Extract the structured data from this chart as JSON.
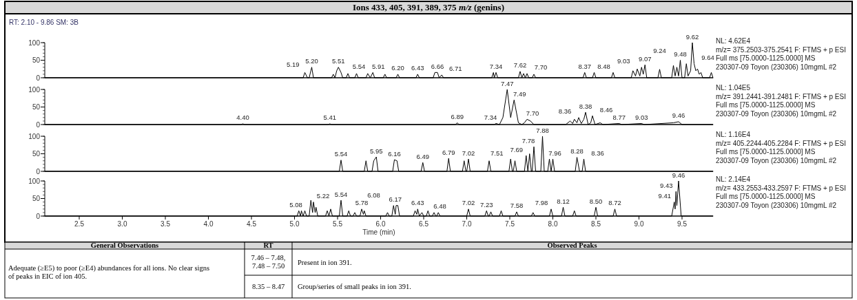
{
  "chart_data": [
    {
      "type": "line",
      "title": "Ions 433, 405, 391, 389, 375 m/z (genins)",
      "subtitle": "RT: 2.10 - 9.86  SM: 3B",
      "xlim": [
        2.1,
        9.86
      ],
      "xticks": [
        2.5,
        3.0,
        3.5,
        4.0,
        4.5,
        5.0,
        5.5,
        6.0,
        6.5,
        7.0,
        7.5,
        8.0,
        8.5,
        9.0,
        9.5
      ],
      "ylim": [
        0,
        100
      ],
      "yticks": [
        0,
        50,
        100
      ],
      "tick_labels": "y",
      "marker": "none",
      "series": [
        {
          "color": "#000000",
          "x": [
            2.1,
            5.1,
            5.12,
            5.15,
            5.17,
            5.19,
            5.2,
            5.22,
            5.43,
            5.45,
            5.47,
            5.49,
            5.51,
            5.54,
            5.56,
            5.6,
            5.62,
            5.64,
            5.7,
            5.72,
            5.74,
            5.83,
            5.85,
            5.88,
            5.91,
            5.93,
            6.03,
            6.05,
            6.07,
            6.18,
            6.2,
            6.22,
            6.41,
            6.43,
            6.45,
            6.61,
            6.63,
            6.66,
            6.68,
            6.71,
            6.73,
            7.29,
            7.31,
            7.32,
            7.34,
            7.36,
            7.6,
            7.62,
            7.64,
            7.66,
            7.68,
            7.7,
            7.72,
            7.76,
            7.78,
            7.8,
            8.35,
            8.37,
            8.39,
            8.46,
            8.48,
            8.5,
            8.68,
            8.7,
            8.72,
            8.91,
            8.93,
            8.96,
            8.98,
            9.01,
            9.03,
            9.05,
            9.07,
            9.09,
            9.22,
            9.24,
            9.26,
            9.38,
            9.4,
            9.42,
            9.44,
            9.46,
            9.48,
            9.5,
            9.53,
            9.55,
            9.57,
            9.6,
            9.62,
            9.64,
            9.66,
            9.68,
            9.7,
            9.72,
            9.74,
            9.82,
            9.84,
            9.86
          ],
          "values": [
            0,
            0,
            15,
            0,
            0,
            20,
            30,
            0,
            0,
            10,
            0,
            20,
            30,
            15,
            0,
            0,
            12,
            0,
            0,
            12,
            0,
            0,
            12,
            0,
            15,
            0,
            0,
            10,
            0,
            0,
            10,
            0,
            0,
            10,
            0,
            0,
            15,
            15,
            0,
            8,
            0,
            0,
            15,
            0,
            15,
            0,
            0,
            18,
            0,
            12,
            0,
            12,
            0,
            0,
            10,
            0,
            0,
            15,
            0,
            0,
            15,
            0,
            0,
            15,
            0,
            0,
            20,
            5,
            25,
            5,
            30,
            10,
            37,
            0,
            0,
            24,
            0,
            0,
            35,
            5,
            30,
            5,
            50,
            0,
            0,
            40,
            5,
            20,
            100,
            40,
            20,
            25,
            10,
            15,
            0,
            0,
            15,
            0
          ]
        }
      ],
      "annotations": [
        {
          "text": "5.19",
          "x": 5.19,
          "y": 20
        },
        {
          "text": "5.20",
          "x": 5.2,
          "y": 30
        },
        {
          "text": "5.51",
          "x": 5.51,
          "y": 30
        },
        {
          "text": "5.54",
          "x": 5.54,
          "y": 15
        },
        {
          "text": "5.91",
          "x": 5.91,
          "y": 15
        },
        {
          "text": "6.20",
          "x": 6.2,
          "y": 10
        },
        {
          "text": "6.43",
          "x": 6.43,
          "y": 10
        },
        {
          "text": "6.66",
          "x": 6.66,
          "y": 15
        },
        {
          "text": "6.71",
          "x": 6.71,
          "y": 8
        },
        {
          "text": "7.34",
          "x": 7.34,
          "y": 15
        },
        {
          "text": "7.62",
          "x": 7.62,
          "y": 18
        },
        {
          "text": "7.70",
          "x": 7.7,
          "y": 12
        },
        {
          "text": "8.37",
          "x": 8.37,
          "y": 15
        },
        {
          "text": "8.48",
          "x": 8.48,
          "y": 15
        },
        {
          "text": "9.03",
          "x": 9.03,
          "y": 30
        },
        {
          "text": "9.07",
          "x": 9.07,
          "y": 37
        },
        {
          "text": "9.24",
          "x": 9.24,
          "y": 24
        },
        {
          "text": "9.48",
          "x": 9.48,
          "y": 50
        },
        {
          "text": "9.62",
          "x": 9.62,
          "y": 100
        },
        {
          "text": "9.64",
          "x": 9.64,
          "y": 40
        },
        "NL: 4.62E4",
        "m/z= 375.2503-375.2541 F: FTMS + p ESI",
        "Full ms [75.0000-1125.0000]  MS",
        "230307-09 Toyon (230306) 10mgmL #2"
      ]
    },
    {
      "type": "line",
      "xlim": [
        2.1,
        9.86
      ],
      "xticks": [
        2.5,
        3.0,
        3.5,
        4.0,
        4.5,
        5.0,
        5.5,
        6.0,
        6.5,
        7.0,
        7.5,
        8.0,
        8.5,
        9.0,
        9.5
      ],
      "ylim": [
        0,
        100
      ],
      "yticks": [
        0,
        50,
        100
      ],
      "tick_labels": "y",
      "marker": "none",
      "series": [
        {
          "color": "#000000",
          "x": [
            2.1,
            4.38,
            4.4,
            4.42,
            5.39,
            5.41,
            5.43,
            6.87,
            6.89,
            6.91,
            7.32,
            7.34,
            7.38,
            7.42,
            7.47,
            7.51,
            7.55,
            7.6,
            7.64,
            7.67,
            7.7,
            7.74,
            7.78,
            8.15,
            8.2,
            8.23,
            8.25,
            8.28,
            8.3,
            8.33,
            8.36,
            8.38,
            8.41,
            8.44,
            8.46,
            8.49,
            8.55,
            8.58,
            8.77,
            8.8,
            9.03,
            9.06,
            9.4,
            9.46,
            9.5,
            9.86
          ],
          "values": [
            0,
            0,
            2,
            0,
            0,
            2,
            0,
            0,
            5,
            0,
            0,
            3,
            0,
            20,
            100,
            20,
            70,
            5,
            0,
            5,
            15,
            10,
            0,
            0,
            10,
            3,
            15,
            5,
            20,
            3,
            15,
            35,
            0,
            5,
            25,
            0,
            5,
            0,
            3,
            0,
            3,
            0,
            5,
            8,
            0,
            0
          ]
        }
      ],
      "annotations": [
        {
          "text": "4.40",
          "x": 4.4,
          "y": 2
        },
        {
          "text": "5.41",
          "x": 5.41,
          "y": 2
        },
        {
          "text": "6.89",
          "x": 6.89,
          "y": 5
        },
        {
          "text": "7.34",
          "x": 7.34,
          "y": 3
        },
        {
          "text": "7.47",
          "x": 7.47,
          "y": 100
        },
        {
          "text": "7.49",
          "x": 7.55,
          "y": 70
        },
        {
          "text": "7.70",
          "x": 7.7,
          "y": 15
        },
        {
          "text": "8.36",
          "x": 8.3,
          "y": 20
        },
        {
          "text": "8.38",
          "x": 8.38,
          "y": 35
        },
        {
          "text": "8.46",
          "x": 8.46,
          "y": 25
        },
        {
          "text": "8.77",
          "x": 8.77,
          "y": 3
        },
        {
          "text": "9.03",
          "x": 9.03,
          "y": 3
        },
        {
          "text": "9.46",
          "x": 9.46,
          "y": 8
        },
        "NL: 1.04E5",
        "m/z= 391.2441-391.2481 F: FTMS + p ESI",
        "Full ms [75.0000-1125.0000]  MS",
        "230307-09 Toyon (230306) 10mgmL #2"
      ]
    },
    {
      "type": "line",
      "xlim": [
        2.1,
        9.86
      ],
      "xticks": [
        2.5,
        3.0,
        3.5,
        4.0,
        4.5,
        5.0,
        5.5,
        6.0,
        6.5,
        7.0,
        7.5,
        8.0,
        8.5,
        9.0,
        9.5
      ],
      "ylim": [
        0,
        100
      ],
      "yticks": [
        0,
        50,
        100
      ],
      "tick_labels": "y",
      "marker": "none",
      "series": [
        {
          "color": "#000000",
          "x": [
            2.1,
            5.52,
            5.54,
            5.56,
            5.81,
            5.83,
            5.85,
            5.9,
            5.92,
            5.95,
            5.97,
            6.14,
            6.16,
            6.19,
            6.21,
            6.47,
            6.49,
            6.51,
            6.77,
            6.79,
            6.81,
            6.95,
            6.97,
            6.99,
            7.0,
            7.02,
            7.04,
            7.24,
            7.26,
            7.28,
            7.49,
            7.51,
            7.53,
            7.54,
            7.56,
            7.58,
            7.67,
            7.69,
            7.71,
            7.73,
            7.75,
            7.76,
            7.78,
            7.8,
            7.86,
            7.88,
            7.9,
            7.94,
            7.96,
            7.98,
            8.0,
            8.02,
            8.26,
            8.28,
            8.31,
            8.34,
            8.36,
            8.38,
            9.86
          ],
          "values": [
            0,
            0,
            32,
            0,
            0,
            30,
            0,
            0,
            30,
            41,
            0,
            0,
            33,
            30,
            0,
            0,
            25,
            0,
            0,
            37,
            0,
            0,
            30,
            0,
            0,
            35,
            0,
            0,
            30,
            0,
            0,
            35,
            0,
            0,
            30,
            0,
            0,
            45,
            0,
            50,
            0,
            0,
            70,
            0,
            0,
            100,
            0,
            0,
            35,
            0,
            35,
            0,
            0,
            40,
            0,
            0,
            35,
            0,
            0
          ]
        }
      ],
      "annotations": [
        {
          "text": "5.54",
          "x": 5.54,
          "y": 32
        },
        {
          "text": "5.95",
          "x": 5.95,
          "y": 41
        },
        {
          "text": "6.16",
          "x": 6.16,
          "y": 33
        },
        {
          "text": "6.49",
          "x": 6.49,
          "y": 25
        },
        {
          "text": "6.79",
          "x": 6.79,
          "y": 37
        },
        {
          "text": "7.02",
          "x": 7.02,
          "y": 35
        },
        {
          "text": "7.51",
          "x": 7.51,
          "y": 35
        },
        {
          "text": "7.69",
          "x": 7.69,
          "y": 45
        },
        {
          "text": "7.78",
          "x": 7.78,
          "y": 70
        },
        {
          "text": "7.88",
          "x": 7.88,
          "y": 100
        },
        {
          "text": "7.96",
          "x": 7.96,
          "y": 35
        },
        {
          "text": "8.28",
          "x": 8.28,
          "y": 40
        },
        {
          "text": "8.36",
          "x": 8.36,
          "y": 35
        },
        "NL: 1.16E4",
        "m/z= 405.2244-405.2284 F: FTMS + p ESI",
        "Full ms [75.0000-1125.0000]  MS",
        "230307-09 Toyon (230306) 10mgmL #2"
      ]
    },
    {
      "type": "line",
      "xlabel": "Time (min)",
      "xlim": [
        2.1,
        9.86
      ],
      "xticks": [
        2.5,
        {
          "value": 3,
          "label": "3.0"
        },
        3.5,
        {
          "value": 4,
          "label": "4.0"
        },
        4.5,
        {
          "value": 5,
          "label": "5.0"
        },
        5.5,
        {
          "value": 6,
          "label": "6.0"
        },
        6.5,
        {
          "value": 7,
          "label": "7.0"
        },
        7.5,
        {
          "value": 8,
          "label": "8.0"
        },
        8.5,
        {
          "value": 9,
          "label": "9.0"
        },
        9.5
      ],
      "ylim": [
        0,
        100
      ],
      "yticks": [
        0,
        50,
        100
      ],
      "marker": "none",
      "series": [
        {
          "color": "#000000",
          "x": [
            2.1,
            5.03,
            5.05,
            5.07,
            5.08,
            5.1,
            5.12,
            5.14,
            5.17,
            5.19,
            5.21,
            5.22,
            5.24,
            5.25,
            5.27,
            5.36,
            5.38,
            5.4,
            5.42,
            5.44,
            5.52,
            5.54,
            5.56,
            5.61,
            5.63,
            5.65,
            5.68,
            5.7,
            5.72,
            5.76,
            5.78,
            5.8,
            5.81,
            5.83,
            6.06,
            6.08,
            6.1,
            6.13,
            6.15,
            6.17,
            6.18,
            6.2,
            6.22,
            6.38,
            6.4,
            6.42,
            6.43,
            6.45,
            6.48,
            6.5,
            6.53,
            6.55,
            6.57,
            6.6,
            6.62,
            6.64,
            6.65,
            6.67,
            6.69,
            7.0,
            7.02,
            7.04,
            7.21,
            7.23,
            7.25,
            7.26,
            7.28,
            7.3,
            7.38,
            7.4,
            7.42,
            7.56,
            7.58,
            7.6,
            7.75,
            7.77,
            7.79,
            7.96,
            7.98,
            8.0,
            8.1,
            8.12,
            8.14,
            8.23,
            8.25,
            8.27,
            8.48,
            8.5,
            8.52,
            8.7,
            8.72,
            8.74,
            9.38,
            9.41,
            9.42,
            9.43,
            9.44,
            9.46,
            9.49,
            9.86
          ],
          "values": [
            0,
            0,
            15,
            0,
            15,
            0,
            15,
            0,
            0,
            45,
            10,
            40,
            10,
            25,
            0,
            0,
            15,
            0,
            20,
            0,
            0,
            45,
            0,
            0,
            15,
            0,
            0,
            10,
            0,
            0,
            20,
            5,
            15,
            0,
            0,
            10,
            0,
            0,
            30,
            5,
            30,
            30,
            0,
            0,
            15,
            5,
            20,
            0,
            10,
            0,
            0,
            15,
            0,
            0,
            10,
            0,
            0,
            10,
            0,
            0,
            20,
            0,
            0,
            15,
            0,
            0,
            12,
            0,
            0,
            15,
            0,
            0,
            12,
            0,
            0,
            10,
            0,
            0,
            20,
            0,
            0,
            25,
            0,
            0,
            15,
            0,
            0,
            25,
            0,
            0,
            20,
            0,
            0,
            40,
            20,
            70,
            30,
            100,
            0,
            0
          ]
        }
      ],
      "annotations": [
        {
          "text": "5.08",
          "x": 5.08,
          "y": 15
        },
        {
          "text": "5.22",
          "x": 5.22,
          "y": 40
        },
        {
          "text": "5.54",
          "x": 5.54,
          "y": 45
        },
        {
          "text": "5.78",
          "x": 5.78,
          "y": 20
        },
        {
          "text": "6.08",
          "x": 6.08,
          "y": 10
        },
        {
          "text": "6.17",
          "x": 6.17,
          "y": 30
        },
        {
          "text": "6.43",
          "x": 6.43,
          "y": 20
        },
        {
          "text": "6.48",
          "x": 6.48,
          "y": 10
        },
        {
          "text": "7.02",
          "x": 7.02,
          "y": 20
        },
        {
          "text": "7.23",
          "x": 7.23,
          "y": 15
        },
        {
          "text": "7.58",
          "x": 7.58,
          "y": 12
        },
        {
          "text": "7.98",
          "x": 7.98,
          "y": 20
        },
        {
          "text": "8.12",
          "x": 8.12,
          "y": 25
        },
        {
          "text": "8.50",
          "x": 8.5,
          "y": 25
        },
        {
          "text": "8.72",
          "x": 8.72,
          "y": 20
        },
        {
          "text": "9.41",
          "x": 9.41,
          "y": 40
        },
        {
          "text": "9.43",
          "x": 9.43,
          "y": 70
        },
        {
          "text": "9.46",
          "x": 9.46,
          "y": 100
        },
        "NL: 2.14E4",
        "m/z= 433.2553-433.2597 F: FTMS + p ESI",
        "Full ms [75.0000-1125.0000]  MS",
        "230307-09 Toyon (230306) 10mgmL #2"
      ]
    },
    {
      "type": "other",
      "annotations": [
        "General Observations",
        "RT",
        "Observed Peaks",
        "Adequate (≥E5) to poor (≥E4) abundances for all ions. No clear signs of peaks in EIC of ion 405.",
        "7.46 – 7.48, 7.48 – 7.50",
        "Present in ion 391.",
        "8.35 – 8.47",
        "Group/series of small peaks in ion 391."
      ]
    }
  ]
}
